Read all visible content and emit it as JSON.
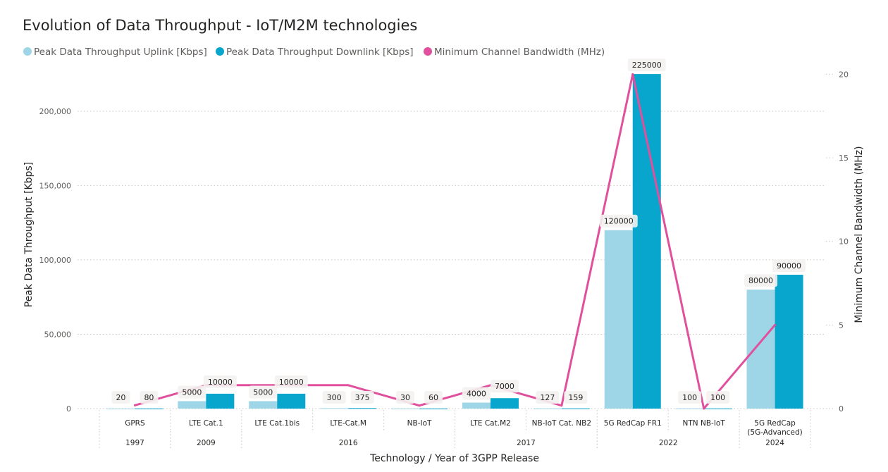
{
  "colors": {
    "uplink": "#9ed6e8",
    "downlink": "#08a5cc",
    "bandwidth": "#e0509c",
    "text": "#252423",
    "grid": "#c8c6c4"
  },
  "chart_data": {
    "type": "bar",
    "title": "Evolution of Data Throughput - IoT/M2M technologies",
    "xlabel": "Technology / Year of 3GPP Release",
    "ylabel": "Peak Data Throughput [Kbps]",
    "y2label": "Minimum Channel Bandwidth (MHz)",
    "ylim": [
      0,
      235000
    ],
    "y2lim": [
      0,
      20.9
    ],
    "yticks": [
      0,
      50000,
      100000,
      150000,
      200000
    ],
    "ytick_labels": [
      "0",
      "50,000",
      "100,000",
      "150,000",
      "200,000"
    ],
    "y2ticks": [
      0,
      5,
      10,
      15,
      20
    ],
    "y2tick_labels": [
      "0",
      "5",
      "10",
      "15",
      "20"
    ],
    "grid": true,
    "legend_position": "top-left",
    "categories": [
      {
        "label": [
          "GPRS"
        ],
        "year": "1997"
      },
      {
        "label": [
          "LTE Cat.1"
        ],
        "year": "2009"
      },
      {
        "label": [
          "LTE Cat.1bis"
        ],
        "year": "2016"
      },
      {
        "label": [
          "LTE-Cat.M"
        ],
        "year": "2016"
      },
      {
        "label": [
          "NB-IoT"
        ],
        "year": "2016"
      },
      {
        "label": [
          "LTE Cat.M2"
        ],
        "year": "2017"
      },
      {
        "label": [
          "NB-IoT Cat. NB2"
        ],
        "year": "2017"
      },
      {
        "label": [
          "5G RedCap FR1"
        ],
        "year": "2022"
      },
      {
        "label": [
          "NTN NB-IoT"
        ],
        "year": "2022"
      },
      {
        "label": [
          "5G RedCap",
          "(5G-Advanced)"
        ],
        "year": "2024"
      }
    ],
    "year_groups": [
      {
        "year": "1997",
        "start": 0,
        "end": 0
      },
      {
        "year": "2009",
        "start": 1,
        "end": 1
      },
      {
        "year": "2016",
        "start": 2,
        "end": 4
      },
      {
        "year": "2017",
        "start": 5,
        "end": 6
      },
      {
        "year": "2022",
        "start": 7,
        "end": 8
      },
      {
        "year": "2024",
        "start": 9,
        "end": 9
      }
    ],
    "series": [
      {
        "name": "Peak Data Throughput Uplink [Kbps]",
        "type": "bar",
        "axis": "left",
        "values": [
          20,
          5000,
          5000,
          300,
          30,
          4000,
          127,
          120000,
          100,
          80000
        ],
        "labels": [
          "20",
          "5000",
          "5000",
          "300",
          "30",
          "4000",
          "127",
          "120000",
          "100",
          "80000"
        ]
      },
      {
        "name": "Peak Data Throughput Downlink [Kbps]",
        "type": "bar",
        "axis": "left",
        "values": [
          80,
          10000,
          10000,
          375,
          60,
          7000,
          159,
          225000,
          100,
          90000
        ],
        "labels": [
          "80",
          "10000",
          "10000",
          "375",
          "60",
          "7000",
          "159",
          "225000",
          "100",
          "90000"
        ]
      },
      {
        "name": "Minimum Channel Bandwidth (MHz)",
        "type": "line",
        "axis": "right",
        "values": [
          0.2,
          1.4,
          1.4,
          1.4,
          0.18,
          1.4,
          0.18,
          20,
          0,
          5
        ]
      }
    ]
  }
}
